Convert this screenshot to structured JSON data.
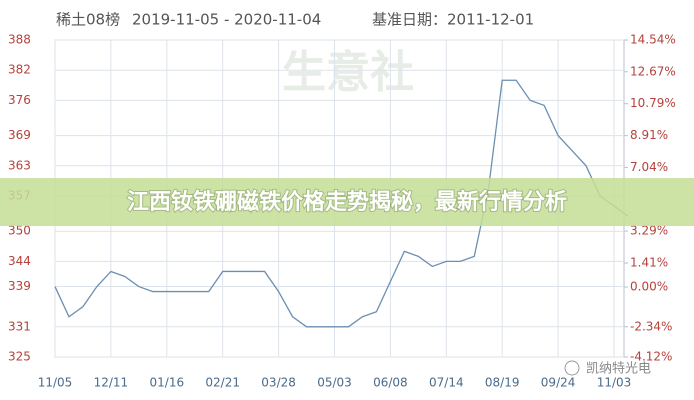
{
  "chart_data": {
    "type": "line",
    "header": {
      "name": "稀土08榜",
      "range": "2019-11-05 - 2020-11-04",
      "base": "基准日期：2011-12-01"
    },
    "banner": "江西钕铁硼磁铁价格走势揭秘，最新行情分析",
    "watermark": "生意社",
    "footer": "凯纳特光电",
    "categories": [
      "11/05",
      null,
      null,
      null,
      "12/11",
      null,
      null,
      null,
      "01/16",
      null,
      null,
      null,
      "02/21",
      null,
      null,
      null,
      "03/28",
      null,
      null,
      null,
      "05/03",
      null,
      null,
      null,
      "06/08",
      null,
      null,
      null,
      "07/14",
      null,
      null,
      null,
      "08/19",
      null,
      null,
      null,
      "09/24",
      null,
      null,
      null,
      "11/03",
      null
    ],
    "series": [
      {
        "name": "稀土08榜",
        "color": "#6b8fb3",
        "values": [
          339,
          333,
          335,
          339,
          342,
          341,
          339,
          338,
          338,
          338,
          338,
          338,
          342,
          342,
          342,
          342,
          338,
          333,
          331,
          331,
          331,
          331,
          333,
          334,
          340,
          346,
          345,
          343,
          344,
          344,
          345,
          358,
          380,
          380,
          376,
          375,
          369,
          366,
          363,
          357,
          355,
          353
        ]
      }
    ],
    "ylim": [
      325,
      388
    ],
    "yticks": [
      325,
      331,
      339,
      344,
      350,
      357,
      363,
      369,
      376,
      382,
      388
    ],
    "y2lim": [
      -4.12,
      14.54
    ],
    "y2ticks": [
      {
        "value": -4.12,
        "label": "-4.12%"
      },
      {
        "value": -2.34,
        "label": "-2.34%"
      },
      {
        "value": 0,
        "label": "0.00%"
      },
      {
        "value": 1.41,
        "label": "1.41%"
      },
      {
        "value": 3.29,
        "label": "3.29%"
      },
      {
        "value": 7.04,
        "label": "7.04%"
      },
      {
        "value": 8.91,
        "label": "8.91%"
      },
      {
        "value": 10.79,
        "label": "10.79%"
      },
      {
        "value": 12.67,
        "label": "12.67%"
      },
      {
        "value": 14.54,
        "label": "14.54%"
      }
    ],
    "grid": true
  }
}
